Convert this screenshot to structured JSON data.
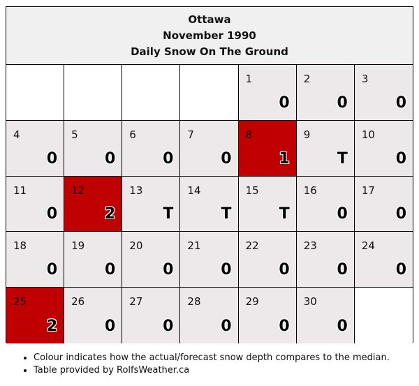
{
  "header": {
    "city": "Ottawa",
    "month": "November 1990",
    "title": "Daily Snow On The Ground"
  },
  "leading_blanks": 4,
  "days": [
    {
      "day": "1",
      "value": "0",
      "level": "normal"
    },
    {
      "day": "2",
      "value": "0",
      "level": "normal"
    },
    {
      "day": "3",
      "value": "0",
      "level": "normal"
    },
    {
      "day": "4",
      "value": "0",
      "level": "normal"
    },
    {
      "day": "5",
      "value": "0",
      "level": "normal"
    },
    {
      "day": "6",
      "value": "0",
      "level": "normal"
    },
    {
      "day": "7",
      "value": "0",
      "level": "normal"
    },
    {
      "day": "8",
      "value": "1",
      "level": "high"
    },
    {
      "day": "9",
      "value": "T",
      "level": "normal"
    },
    {
      "day": "10",
      "value": "0",
      "level": "normal"
    },
    {
      "day": "11",
      "value": "0",
      "level": "normal"
    },
    {
      "day": "12",
      "value": "2",
      "level": "high"
    },
    {
      "day": "13",
      "value": "T",
      "level": "normal"
    },
    {
      "day": "14",
      "value": "T",
      "level": "normal"
    },
    {
      "day": "15",
      "value": "T",
      "level": "normal"
    },
    {
      "day": "16",
      "value": "0",
      "level": "normal"
    },
    {
      "day": "17",
      "value": "0",
      "level": "normal"
    },
    {
      "day": "18",
      "value": "0",
      "level": "normal"
    },
    {
      "day": "19",
      "value": "0",
      "level": "normal"
    },
    {
      "day": "20",
      "value": "0",
      "level": "normal"
    },
    {
      "day": "21",
      "value": "0",
      "level": "normal"
    },
    {
      "day": "22",
      "value": "0",
      "level": "normal"
    },
    {
      "day": "23",
      "value": "0",
      "level": "normal"
    },
    {
      "day": "24",
      "value": "0",
      "level": "normal"
    },
    {
      "day": "25",
      "value": "2",
      "level": "high"
    },
    {
      "day": "26",
      "value": "0",
      "level": "normal"
    },
    {
      "day": "27",
      "value": "0",
      "level": "normal"
    },
    {
      "day": "28",
      "value": "0",
      "level": "normal"
    },
    {
      "day": "29",
      "value": "0",
      "level": "normal"
    },
    {
      "day": "30",
      "value": "0",
      "level": "normal"
    }
  ],
  "colors": {
    "normal": "#ede8ea",
    "high": "#c00000",
    "empty": "#ffffff",
    "header_bg": "#f0f0f0"
  },
  "notes": [
    "Colour indicates how the actual/forecast snow depth compares to the median.",
    "Table provided by RolfsWeather.ca"
  ]
}
